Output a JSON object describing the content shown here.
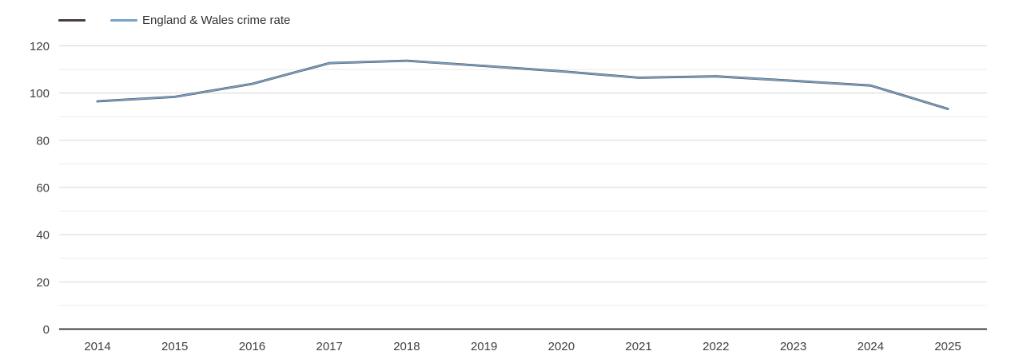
{
  "legend": {
    "items": [
      {
        "label": "",
        "color": "#483c42"
      },
      {
        "label": "England & Wales crime rate",
        "color": "#75a3cc"
      }
    ]
  },
  "chart_data": {
    "type": "line",
    "title": "",
    "xlabel": "",
    "ylabel": "",
    "x": [
      2014,
      2015,
      2016,
      2017,
      2018,
      2019,
      2020,
      2021,
      2022,
      2023,
      2024,
      2025
    ],
    "series": [
      {
        "name": "",
        "color": "#483c42",
        "values": [
          96.5,
          98.4,
          103.9,
          112.7,
          113.7,
          111.5,
          109.2,
          106.5,
          107.1,
          105.2,
          103.2,
          93.3
        ]
      },
      {
        "name": "England & Wales crime rate",
        "color": "#75a3cc",
        "values": [
          96.5,
          98.4,
          103.9,
          112.7,
          113.7,
          111.5,
          109.2,
          106.5,
          107.1,
          105.2,
          103.2,
          93.3
        ]
      }
    ],
    "ylim": [
      0,
      120
    ],
    "ytick_step": 20,
    "yminor_step": 10,
    "yticks": [
      0,
      20,
      40,
      60,
      80,
      100,
      120
    ],
    "grid": "horizontal, major + minor",
    "legend_position": "top-left",
    "axis_color": "#262626",
    "grid_major_color": "#d6d6d6",
    "grid_minor_color": "#ebebeb",
    "tick_label_color": "#404040"
  }
}
